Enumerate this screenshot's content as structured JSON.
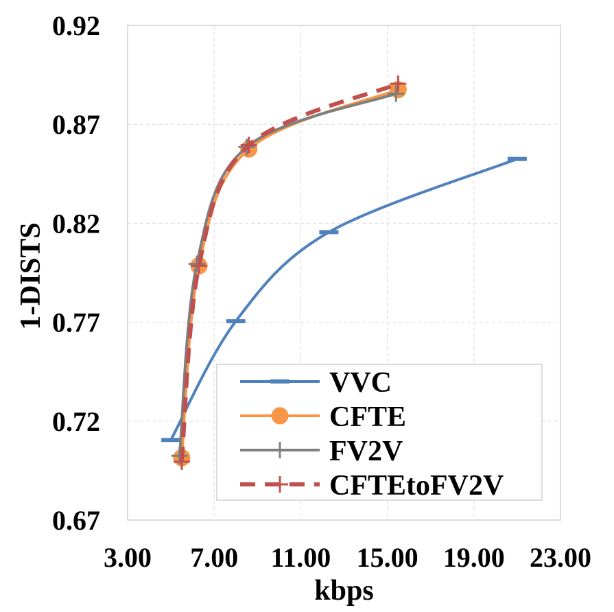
{
  "chart_data": {
    "type": "line",
    "title": "",
    "xlabel": "kbps",
    "ylabel": "1-DISTS",
    "xlim": [
      3.0,
      23.0
    ],
    "ylim": [
      0.67,
      0.92
    ],
    "xticks": [
      "3.00",
      "7.00",
      "11.00",
      "15.00",
      "19.00",
      "23.00"
    ],
    "yticks": [
      "0.67",
      "0.72",
      "0.77",
      "0.82",
      "0.87",
      "0.92"
    ],
    "grid": true,
    "legend_position": "bottom-right",
    "series": [
      {
        "name": "VVC",
        "color": "#4f81bd",
        "marker": "dash",
        "style": "solid",
        "x": [
          5.0,
          8.0,
          12.3,
          21.0
        ],
        "y": [
          0.7105,
          0.7705,
          0.8155,
          0.8525
        ]
      },
      {
        "name": "CFTE",
        "color": "#f79646",
        "marker": "circle",
        "style": "solid",
        "x": [
          5.5,
          6.3,
          8.6,
          15.5
        ],
        "y": [
          0.7015,
          0.7985,
          0.8575,
          0.8875
        ]
      },
      {
        "name": "FV2V",
        "color": "#7f7f7f",
        "marker": "plus",
        "style": "solid",
        "x": [
          5.4,
          6.2,
          8.5,
          15.4
        ],
        "y": [
          0.7025,
          0.7995,
          0.8585,
          0.8855
        ]
      },
      {
        "name": "CFTEtoFV2V",
        "color": "#c0504d",
        "marker": "plus",
        "style": "dashed",
        "x": [
          5.5,
          6.3,
          8.6,
          15.5
        ],
        "y": [
          0.6995,
          0.7985,
          0.8595,
          0.8905
        ]
      }
    ]
  }
}
